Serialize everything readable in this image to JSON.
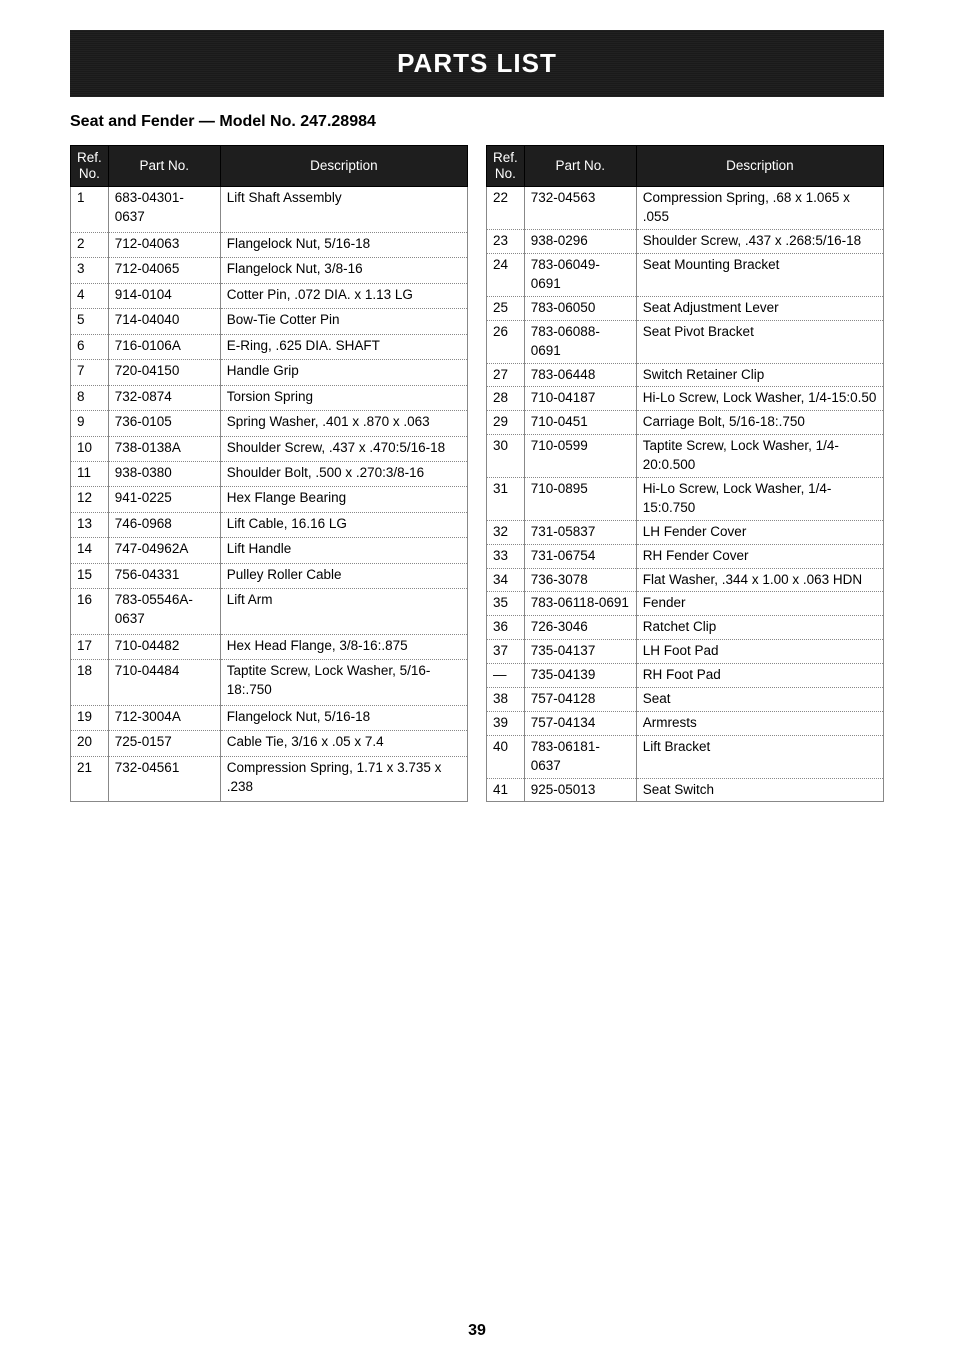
{
  "banner": "PARTS LIST",
  "subtitle": "Seat and Fender — Model No. 247.28984",
  "headers": {
    "ref": "Ref.\nNo.",
    "part": "Part No.",
    "desc": "Description"
  },
  "left": [
    {
      "ref": "1",
      "part": "683-04301-0637",
      "desc": "Lift Shaft Assembly"
    },
    {
      "ref": "2",
      "part": "712-04063",
      "desc": "Flangelock Nut, 5/16-18"
    },
    {
      "ref": "3",
      "part": "712-04065",
      "desc": "Flangelock Nut, 3/8-16"
    },
    {
      "ref": "4",
      "part": "914-0104",
      "desc": "Cotter Pin, .072 DIA. x 1.13 LG"
    },
    {
      "ref": "5",
      "part": "714-04040",
      "desc": "Bow-Tie Cotter Pin"
    },
    {
      "ref": "6",
      "part": "716-0106A",
      "desc": "E-Ring, .625 DIA. SHAFT"
    },
    {
      "ref": "7",
      "part": "720-04150",
      "desc": "Handle Grip"
    },
    {
      "ref": "8",
      "part": "732-0874",
      "desc": "Torsion Spring"
    },
    {
      "ref": "9",
      "part": "736-0105",
      "desc": "Spring Washer, .401 x .870 x .063"
    },
    {
      "ref": "10",
      "part": "738-0138A",
      "desc": "Shoulder Screw,  .437 x .470:5/16-18"
    },
    {
      "ref": "11",
      "part": "938-0380",
      "desc": "Shoulder Bolt, .500 x .270:3/8-16"
    },
    {
      "ref": "12",
      "part": "941-0225",
      "desc": "Hex Flange Bearing"
    },
    {
      "ref": "13",
      "part": "746-0968",
      "desc": "Lift Cable, 16.16 LG"
    },
    {
      "ref": "14",
      "part": "747-04962A",
      "desc": "Lift Handle"
    },
    {
      "ref": "15",
      "part": "756-04331",
      "desc": "Pulley Roller Cable"
    },
    {
      "ref": "16",
      "part": "783-05546A-0637",
      "desc": "Lift Arm"
    },
    {
      "ref": "17",
      "part": "710-04482",
      "desc": "Hex Head Flange, 3/8-16:.875"
    },
    {
      "ref": "18",
      "part": "710-04484",
      "desc": "Taptite Screw, Lock Washer, 5/16-18:.750"
    },
    {
      "ref": "19",
      "part": "712-3004A",
      "desc": "Flangelock Nut, 5/16-18"
    },
    {
      "ref": "20",
      "part": "725-0157",
      "desc": "Cable Tie, 3/16 x .05 x 7.4"
    },
    {
      "ref": "21",
      "part": "732-04561",
      "desc": "Compression Spring, 1.71 x 3.735 x .238"
    }
  ],
  "right": [
    {
      "ref": "22",
      "part": "732-04563",
      "desc": "Compression Spring, .68 x 1.065 x .055"
    },
    {
      "ref": "23",
      "part": "938-0296",
      "desc": "Shoulder Screw, .437 x .268:5/16-18"
    },
    {
      "ref": "24",
      "part": "783-06049-0691",
      "desc": "Seat Mounting Bracket"
    },
    {
      "ref": "25",
      "part": "783-06050",
      "desc": "Seat Adjustment Lever"
    },
    {
      "ref": "26",
      "part": "783-06088-0691",
      "desc": "Seat Pivot Bracket"
    },
    {
      "ref": "27",
      "part": "783-06448",
      "desc": "Switch Retainer Clip"
    },
    {
      "ref": "28",
      "part": "710-04187",
      "desc": "Hi-Lo Screw, Lock Washer, 1/4-15:0.50"
    },
    {
      "ref": "29",
      "part": "710-0451",
      "desc": "Carriage Bolt, 5/16-18:.750"
    },
    {
      "ref": "30",
      "part": "710-0599",
      "desc": "Taptite Screw, Lock Washer, 1/4-20:0.500"
    },
    {
      "ref": "31",
      "part": "710-0895",
      "desc": "Hi-Lo Screw, Lock Washer, 1/4-15:0.750"
    },
    {
      "ref": "32",
      "part": "731-05837",
      "desc": "LH Fender Cover"
    },
    {
      "ref": "33",
      "part": "731-06754",
      "desc": "RH Fender Cover"
    },
    {
      "ref": "34",
      "part": "736-3078",
      "desc": "Flat Washer, .344 x 1.00 x .063 HDN"
    },
    {
      "ref": "35",
      "part": "783-06118-0691",
      "desc": "Fender"
    },
    {
      "ref": "36",
      "part": "726-3046",
      "desc": "Ratchet Clip"
    },
    {
      "ref": "37",
      "part": "735-04137",
      "desc": "LH Foot Pad"
    },
    {
      "ref": "—",
      "part": "735-04139",
      "desc": "RH Foot Pad"
    },
    {
      "ref": "38",
      "part": "757-04128",
      "desc": "Seat"
    },
    {
      "ref": "39",
      "part": "757-04134",
      "desc": "Armrests"
    },
    {
      "ref": "40",
      "part": "783-06181-0637",
      "desc": "Lift Bracket"
    },
    {
      "ref": "41",
      "part": "925-05013",
      "desc": "Seat Switch"
    }
  ],
  "pagenum": "39"
}
